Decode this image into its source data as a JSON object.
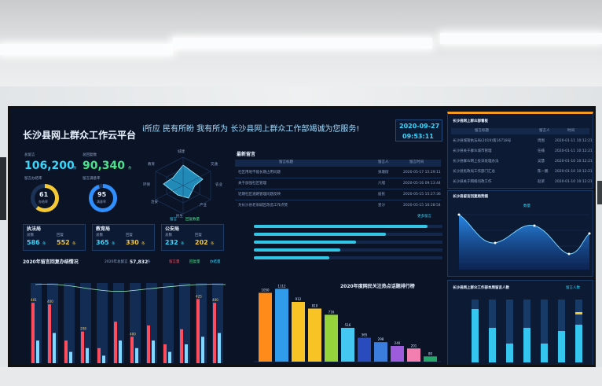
{
  "header": {
    "title": "长沙县网上群众工作云平台",
    "marquee": "i所应 民有所盼 我有所为 长沙县网上群众工作部竭诚为您服务!",
    "date": "2020-09-27",
    "time": "09:53:11"
  },
  "stats": {
    "total_label": "总留言",
    "total_value": "106,200",
    "total_unit": "条",
    "reply_label": "总回复数",
    "reply_value": "90,340",
    "reply_unit": "条",
    "ring1_label": "留言办结率",
    "ring1_value": "61",
    "ring1_pct": 61,
    "ring1_sub": "办结率",
    "ring2_label": "留言满意率",
    "ring2_value": "95",
    "ring2_pct": 95,
    "ring2_sub": "满意率"
  },
  "bureaus": [
    {
      "name": "执法局",
      "left_label": "总数",
      "right_label": "回复",
      "left_value": "586",
      "right_value": "552",
      "unit": "条"
    },
    {
      "name": "教育局",
      "left_label": "总数",
      "right_label": "回复",
      "left_value": "365",
      "right_value": "330",
      "unit": "条"
    },
    {
      "name": "公安局",
      "left_label": "总数",
      "right_label": "回复",
      "left_value": "232",
      "right_value": "202",
      "unit": "条"
    }
  ],
  "radar": {
    "axes": [
      "城建",
      "交通",
      "农业",
      "教育",
      "环保",
      "治安",
      "产业",
      "民生"
    ],
    "legend": [
      "留言",
      "回复数量"
    ]
  },
  "messages": {
    "title": "最新留言",
    "headers": [
      "留言标题",
      "留言人",
      "留言时间"
    ],
    "rows": [
      {
        "title": "社区用地不能长期占用问题",
        "person": "泉塘街",
        "time": "2020-05-17 15:29:11"
      },
      {
        "title": "关于加强社区管理",
        "person": "六旭",
        "time": "2020-05-16 09:13:44"
      },
      {
        "title": "近期社区道路管理问题反映",
        "person": "居民",
        "time": "2020-05-15 15:27:36"
      },
      {
        "title": "为长沙县老旧城区改造工作点赞",
        "person": "星沙",
        "time": "2020-05-15 16:28:54"
      }
    ],
    "more": "更多留言"
  },
  "progress": [
    92,
    70,
    54,
    46,
    40
  ],
  "trend": {
    "title": "2020年留言回复办结情况",
    "total_label": "2020年总留言",
    "total_value": "57,832",
    "total_unit": "条",
    "legend": [
      "留言量",
      "回复量",
      "办结量"
    ],
    "labels": [
      "401",
      "400",
      "",
      "208",
      "",
      "",
      "400",
      "",
      "",
      "",
      "425",
      "400"
    ]
  },
  "ranking": {
    "title": "2020年度网民关注热点话题排行榜",
    "values": [
      1050,
      1112,
      912,
      810,
      716,
      516,
      365,
      298,
      240,
      201,
      80
    ],
    "colors": [
      "#ff8c1a",
      "#2f9bea",
      "#f7c325",
      "#f7c325",
      "#95d53b",
      "#44c7f0",
      "#2a4bbd",
      "#3b7ddc",
      "#9c5cdb",
      "#f27fb0",
      "#26a66b"
    ]
  },
  "right_top": {
    "title": "长沙县网上群众部看板",
    "headers": [
      "留言标题",
      "留言人",
      "时间"
    ],
    "rows": [
      {
        "title": "长沙县城管执法局(2019)第16718号",
        "person": "周围",
        "time": "2020-01-11 10:12:21"
      },
      {
        "title": "长沙县关于群众城市管理",
        "person": "任楠",
        "time": "2020-01-11 10:12:21"
      },
      {
        "title": "长沙县群众网上投诉处理办法",
        "person": "吴慧",
        "time": "2020-01-10 10:12:21"
      },
      {
        "title": "长沙县民政局工作部门汇总",
        "person": "陈一鹏",
        "time": "2020-01-10 10:12:21"
      },
      {
        "title": "长沙县关于网络问政工作",
        "person": "赵梁",
        "time": "2020-01-10 10:12:21"
      }
    ]
  },
  "right_mid": {
    "title": "长沙县留言回复趋势图",
    "legend": "数量"
  },
  "right_bottom": {
    "title": "长沙县网上群众工作部本周留言人数",
    "legend": "留言人数"
  },
  "colors": {
    "accent": "#34d8ff",
    "green": "#47e38b",
    "red": "#ff4d5e",
    "orange": "#f59a23",
    "panel": "#0d1a33"
  }
}
